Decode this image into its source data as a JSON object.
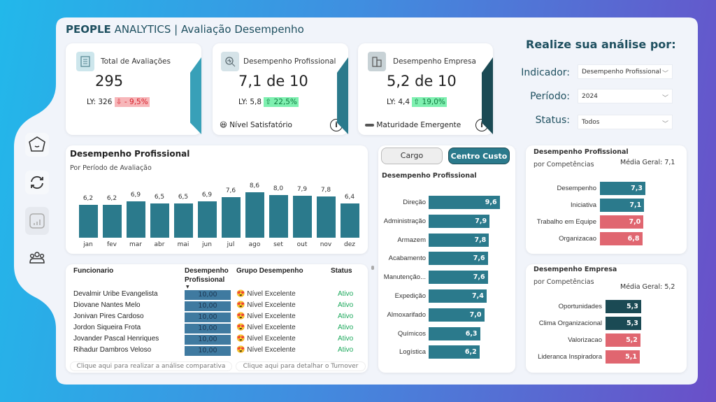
{
  "header": {
    "title_bold": "PEOPLE",
    "title_rest": " ANALYTICS | Avaliação Desempenho"
  },
  "sidebar": {
    "items": [
      {
        "icon": "home-icon"
      },
      {
        "icon": "refresh-icon"
      },
      {
        "icon": "bar-chart-icon"
      },
      {
        "icon": "people-icon"
      }
    ]
  },
  "kpis": [
    {
      "label": "Total de Avaliações",
      "value": "295",
      "ly": "LY: 326",
      "delta": "⇩ - 9,5%",
      "trend": "down",
      "icon": "document-icon",
      "footer": ""
    },
    {
      "label": "Desempenho Profissional",
      "value": "7,1 de 10",
      "ly": "LY: 5,8",
      "delta": "⇧ 22,5%",
      "trend": "up",
      "icon": "magnify-chart-icon",
      "footer": "Nível Satisfatório"
    },
    {
      "label": "Desempenho Empresa",
      "value": "5,2 de 10",
      "ly": "LY: 4,4",
      "delta": "⇧ 19,0%",
      "trend": "up",
      "icon": "building-icon",
      "footer": "Maturidade Emergente"
    }
  ],
  "filters": {
    "title": "Realize sua análise por:",
    "items": [
      {
        "label": "Indicador:",
        "value": "Desempenho Profissional"
      },
      {
        "label": "Período:",
        "value": "2024"
      },
      {
        "label": "Status:",
        "value": "Todos"
      }
    ]
  },
  "chart_data": [
    {
      "type": "bar",
      "title": "Desempenho Profissional",
      "subtitle": "Por Período de Avaliação",
      "categories": [
        "jan",
        "fev",
        "mar",
        "abr",
        "mai",
        "jun",
        "jul",
        "ago",
        "set",
        "out",
        "nov",
        "dez"
      ],
      "values": [
        6.2,
        6.2,
        6.9,
        6.5,
        6.5,
        6.9,
        7.6,
        8.6,
        8.0,
        7.9,
        7.8,
        6.4
      ],
      "labels": [
        "6,2",
        "6,2",
        "6,9",
        "6,5",
        "6,5",
        "6,9",
        "7,6",
        "8,6",
        "8,0",
        "7,9",
        "7,8",
        "6,4"
      ],
      "color": "#2b7a8c"
    },
    {
      "type": "bar",
      "orientation": "horizontal",
      "title": "Desempenho Profissional",
      "categories": [
        "Direção",
        "Administração",
        "Armazem",
        "Acabamento",
        "Manutenção...",
        "Expedição",
        "Almoxarifado",
        "Químicos",
        "Logística"
      ],
      "values": [
        9.6,
        7.9,
        7.8,
        7.6,
        7.6,
        7.4,
        7.0,
        6.3,
        6.2
      ],
      "labels": [
        "9,6",
        "7,9",
        "7,8",
        "7,6",
        "7,6",
        "7,4",
        "7,0",
        "6,3",
        "6,2"
      ],
      "color": "#2b7a8c"
    },
    {
      "type": "bar",
      "orientation": "horizontal",
      "title": "Desempenho Profissional",
      "subtitle": "por Competências",
      "annotation": "Média Geral: 7,1",
      "categories": [
        "Desempenho",
        "Iniciativa",
        "Trabalho em Equipe",
        "Organizacao"
      ],
      "values": [
        7.3,
        7.1,
        7.0,
        6.8
      ],
      "labels": [
        "7,3",
        "7,1",
        "7,0",
        "6,8"
      ],
      "colors": [
        "#2b7a8c",
        "#2b7a8c",
        "#e06670",
        "#e06670"
      ]
    },
    {
      "type": "bar",
      "orientation": "horizontal",
      "title": "Desempenho Empresa",
      "subtitle": "por Competências",
      "annotation": "Média Geral: 5,2",
      "categories": [
        "Oportunidades",
        "Clima Organizacional",
        "Valorizacao",
        "Lideranca Inspiradora"
      ],
      "values": [
        5.3,
        5.3,
        5.2,
        5.1
      ],
      "labels": [
        "5,3",
        "5,3",
        "5,2",
        "5,1"
      ],
      "colors": [
        "#1b4a54",
        "#1b4a54",
        "#e06670",
        "#e06670"
      ]
    }
  ],
  "toggle": {
    "cargo": "Cargo",
    "centro": "Centro Custo",
    "active": "Centro Custo"
  },
  "table": {
    "headers": [
      "Funcionario",
      "Desempenho Profissional",
      "Grupo Desempenho",
      "Status"
    ],
    "rows": [
      {
        "name": "Devalmir Uribe Evangelista",
        "score": "10,00",
        "group": "Nível Excelente",
        "status": "Ativo"
      },
      {
        "name": "Diovane Nantes Melo",
        "score": "10,00",
        "group": "Nível Excelente",
        "status": "Ativo"
      },
      {
        "name": "Jonivan Pires Cardoso",
        "score": "10,00",
        "group": "Nível Excelente",
        "status": "Ativo"
      },
      {
        "name": "Jordon Siqueira Frota",
        "score": "10,00",
        "group": "Nível Excelente",
        "status": "Ativo"
      },
      {
        "name": "Jovander Pascal Henriques",
        "score": "10,00",
        "group": "Nível Excelente",
        "status": "Ativo"
      },
      {
        "name": "Rihadur Dambros Veloso",
        "score": "10,00",
        "group": "Nível Excelente",
        "status": "Ativo"
      }
    ],
    "btn_comparativa": "Clique aqui para realizar a análise comparativa",
    "btn_turnover": "Clique aqui para detalhar o Turnover"
  }
}
